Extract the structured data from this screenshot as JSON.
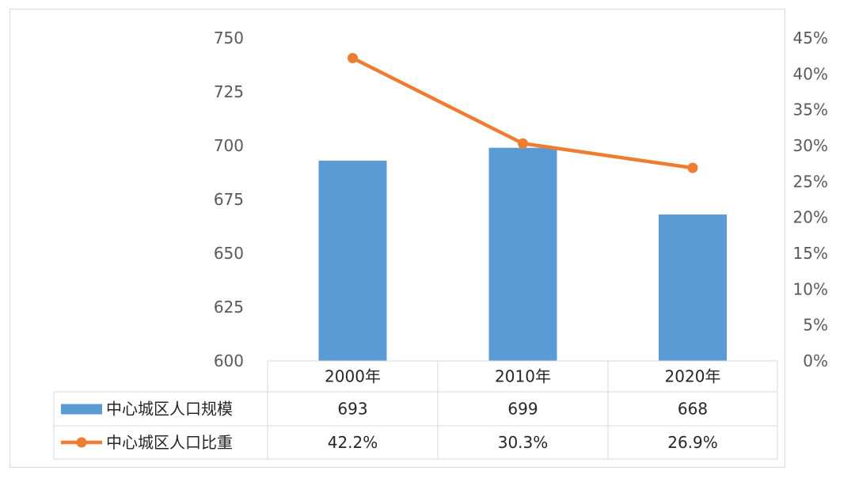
{
  "chart_data": {
    "type": "bar",
    "categories": [
      "2000年",
      "2010年",
      "2020年"
    ],
    "series": [
      {
        "name": "中心城区人口规模",
        "type": "bar",
        "axis": "left",
        "values": [
          693,
          699,
          668
        ],
        "labels": [
          "693",
          "699",
          "668"
        ],
        "color": "#5b9bd5"
      },
      {
        "name": "中心城区人口比重",
        "type": "line",
        "axis": "right",
        "values": [
          42.2,
          30.3,
          26.9
        ],
        "labels": [
          "42.2%",
          "30.3%",
          "26.9%"
        ],
        "color": "#ed7d31"
      }
    ],
    "ylim_left": [
      600,
      750
    ],
    "yticks_left": [
      "600",
      "625",
      "650",
      "675",
      "700",
      "725",
      "750"
    ],
    "ylim_right": [
      0,
      45
    ],
    "yticks_right": [
      "0%",
      "5%",
      "10%",
      "15%",
      "20%",
      "25%",
      "30%",
      "35%",
      "40%",
      "45%"
    ],
    "grid": false,
    "data_table": true
  }
}
